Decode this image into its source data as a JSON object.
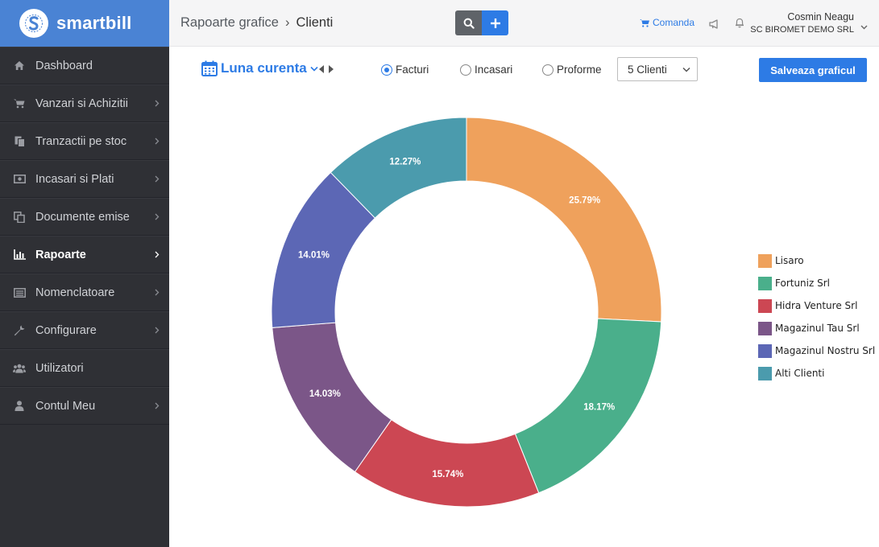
{
  "app": {
    "logo_text": "smartbill",
    "brand_color": "#4a83d4",
    "accent_color": "#2d7be5"
  },
  "sidebar": {
    "items": [
      {
        "label": "Dashboard",
        "icon": "home-icon",
        "has_submenu": false,
        "active": false
      },
      {
        "label": "Vanzari si Achizitii",
        "icon": "cart-icon",
        "has_submenu": true,
        "active": false
      },
      {
        "label": "Tranzactii pe stoc",
        "icon": "copy-icon",
        "has_submenu": true,
        "active": false
      },
      {
        "label": "Incasari si Plati",
        "icon": "money-icon",
        "has_submenu": true,
        "active": false
      },
      {
        "label": "Documente emise",
        "icon": "documents-icon",
        "has_submenu": true,
        "active": false
      },
      {
        "label": "Rapoarte",
        "icon": "bar-chart-icon",
        "has_submenu": true,
        "active": true
      },
      {
        "label": "Nomenclatoare",
        "icon": "list-icon",
        "has_submenu": true,
        "active": false
      },
      {
        "label": "Configurare",
        "icon": "wrench-icon",
        "has_submenu": true,
        "active": false
      },
      {
        "label": "Utilizatori",
        "icon": "users-icon",
        "has_submenu": false,
        "active": false
      },
      {
        "label": "Contul Meu",
        "icon": "user-icon",
        "has_submenu": true,
        "active": false
      }
    ]
  },
  "header": {
    "breadcrumb_parent": "Rapoarte grafice",
    "breadcrumb_separator": "›",
    "breadcrumb_current": "Clienti",
    "order_link": "Comanda",
    "user_name": "Cosmin Neagu",
    "company": "SC BIROMET DEMO SRL"
  },
  "toolbar": {
    "period": "Luna curenta",
    "radios": [
      {
        "label": "Facturi",
        "checked": true
      },
      {
        "label": "Incasari",
        "checked": false
      },
      {
        "label": "Proforme",
        "checked": false
      }
    ],
    "client_count_select": "5 Clienti",
    "save_label": "Salveaza graficul"
  },
  "chart_data": {
    "type": "pie",
    "donut": true,
    "legend_position": "right",
    "slices": [
      {
        "name": "Lisaro",
        "value": 25.79,
        "label": "25.79%",
        "color": "#efa15c"
      },
      {
        "name": "Fortuniz Srl",
        "value": 18.17,
        "label": "18.17%",
        "color": "#4aaf8b"
      },
      {
        "name": "Hidra Venture Srl",
        "value": 15.74,
        "label": "15.74%",
        "color": "#cc4753"
      },
      {
        "name": "Magazinul Tau Srl",
        "value": 14.03,
        "label": "14.03%",
        "color": "#7b5688"
      },
      {
        "name": "Magazinul Nostru Srl",
        "value": 14.01,
        "label": "14.01%",
        "color": "#5c67b5"
      },
      {
        "name": "Alti Clienti",
        "value": 12.27,
        "label": "12.27%",
        "color": "#4b9bad"
      }
    ]
  }
}
